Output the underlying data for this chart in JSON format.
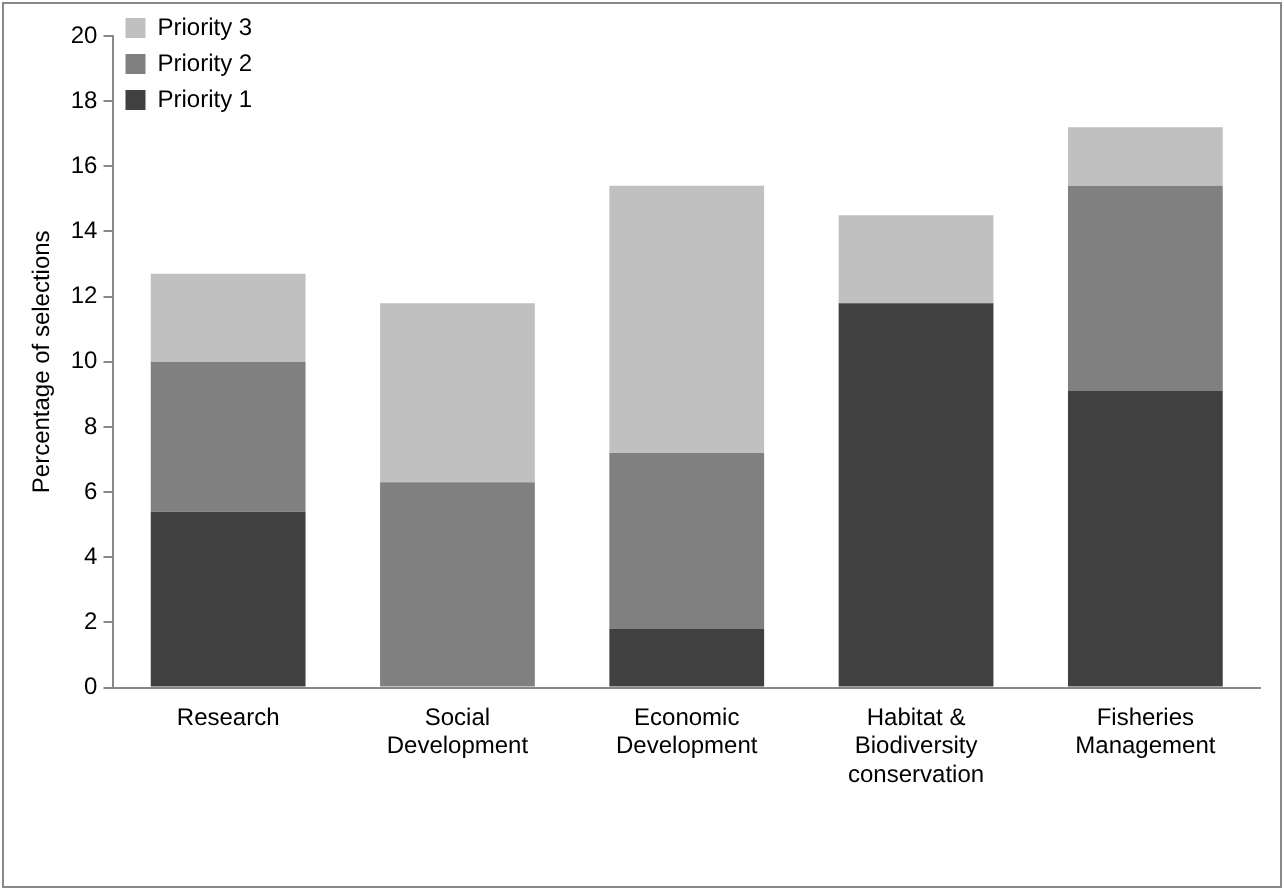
{
  "chart_data": {
    "type": "bar",
    "stacked": true,
    "ylabel": "Percentage of selections",
    "categories": [
      "Research",
      "Social Development",
      "Economic Development",
      "Habitat & Biodiversity conservation",
      "Fisheries Management"
    ],
    "series": [
      {
        "name": "Priority 1",
        "color": "#404040",
        "values": [
          5.4,
          0,
          1.8,
          11.8,
          9.1
        ]
      },
      {
        "name": "Priority 2",
        "color": "#808080",
        "values": [
          4.6,
          6.3,
          5.4,
          0,
          6.3
        ]
      },
      {
        "name": "Priority 3",
        "color": "#c0c0c0",
        "values": [
          2.7,
          5.5,
          8.2,
          2.7,
          1.8
        ]
      }
    ],
    "ylim": [
      0,
      20
    ],
    "yticks": [
      0,
      2,
      4,
      6,
      8,
      10,
      12,
      14,
      16,
      18,
      20
    ],
    "grid": false,
    "legend": "top left"
  }
}
